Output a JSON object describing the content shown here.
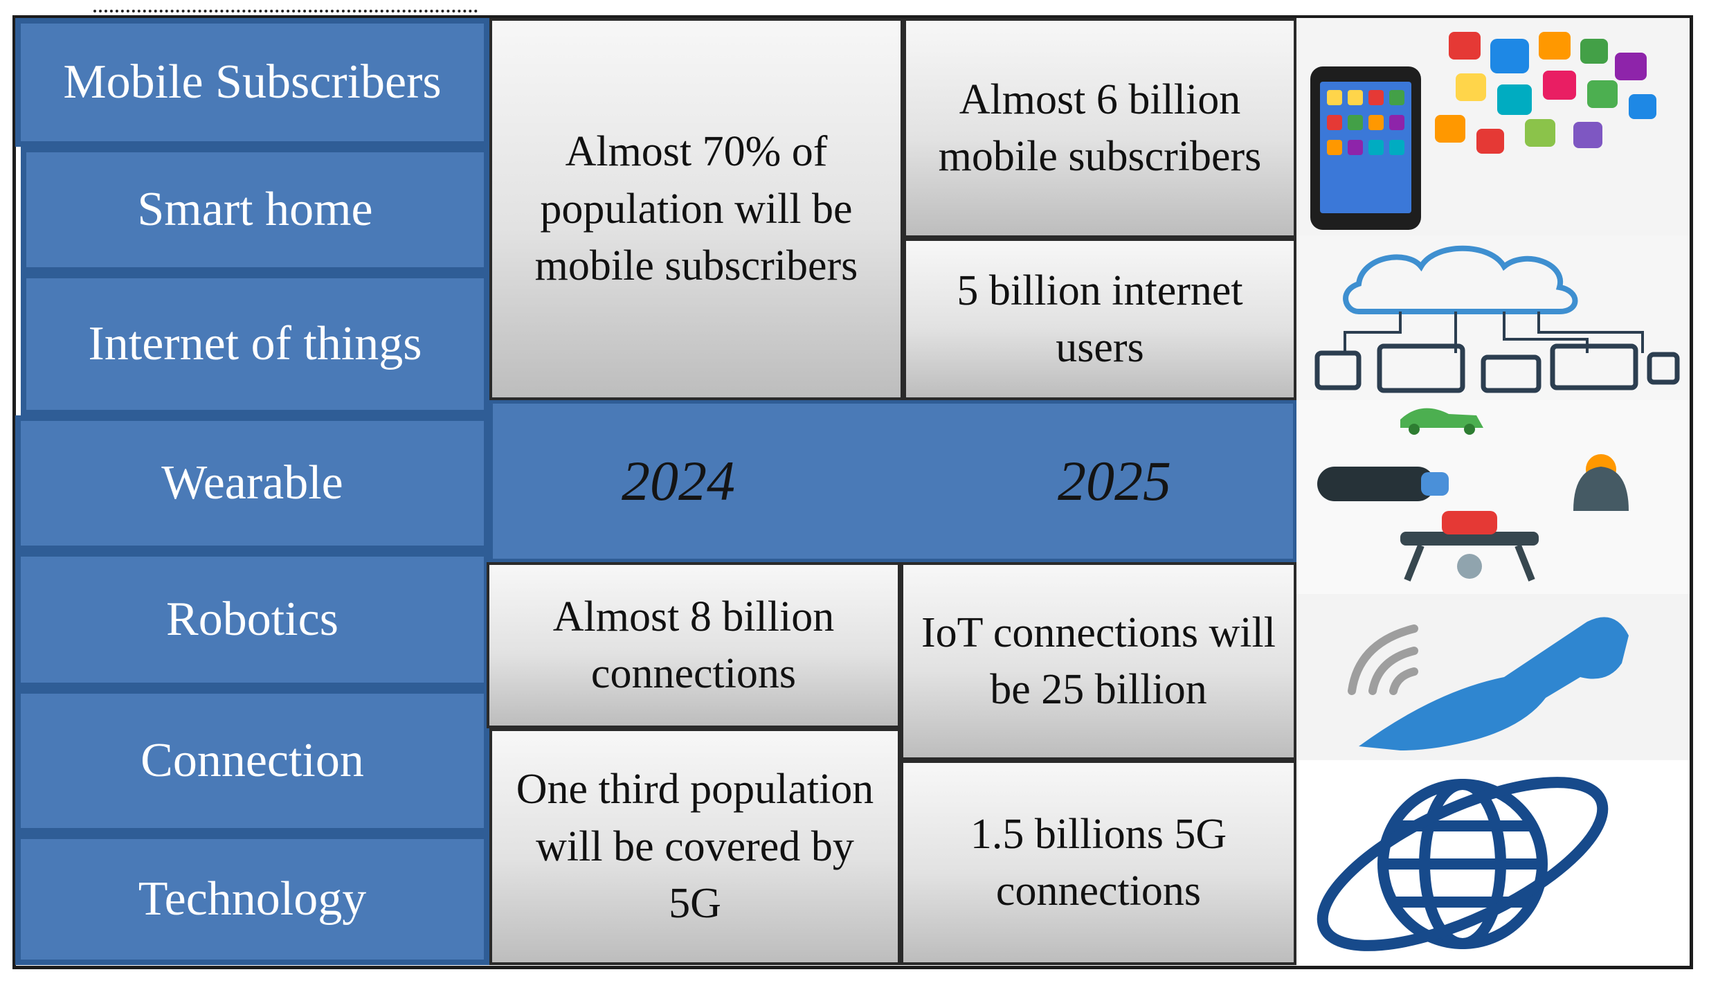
{
  "categories": {
    "mobile_subscribers": "Mobile Subscribers",
    "smart_home": "Smart home",
    "iot": "Internet of things",
    "wearable": "Wearable",
    "robotics": "Robotics",
    "connection": "Connection",
    "technology": "Technology"
  },
  "years": {
    "y2024": "2024",
    "y2025": "2025"
  },
  "facts_2024": {
    "mobile": "Almost 70% of population will be mobile subscribers",
    "connections": "Almost 8 billion connections",
    "coverage": "One third population will be covered by 5G"
  },
  "facts_2025": {
    "mobile": "Almost 6 billion mobile subscribers",
    "internet": "5 billion internet users",
    "iot": "IoT connections will be 25 billion",
    "five_g": "1.5 billions 5G connections"
  },
  "illustrations": [
    "smartphone-apps-icon",
    "cloud-devices-icon",
    "wearables-robotics-icon",
    "phone-signal-icon",
    "globe-icon"
  ],
  "colors": {
    "category_blue": "#4a7ab7",
    "category_border": "#2f5d96",
    "cell_gray": "#e2e2e2"
  }
}
